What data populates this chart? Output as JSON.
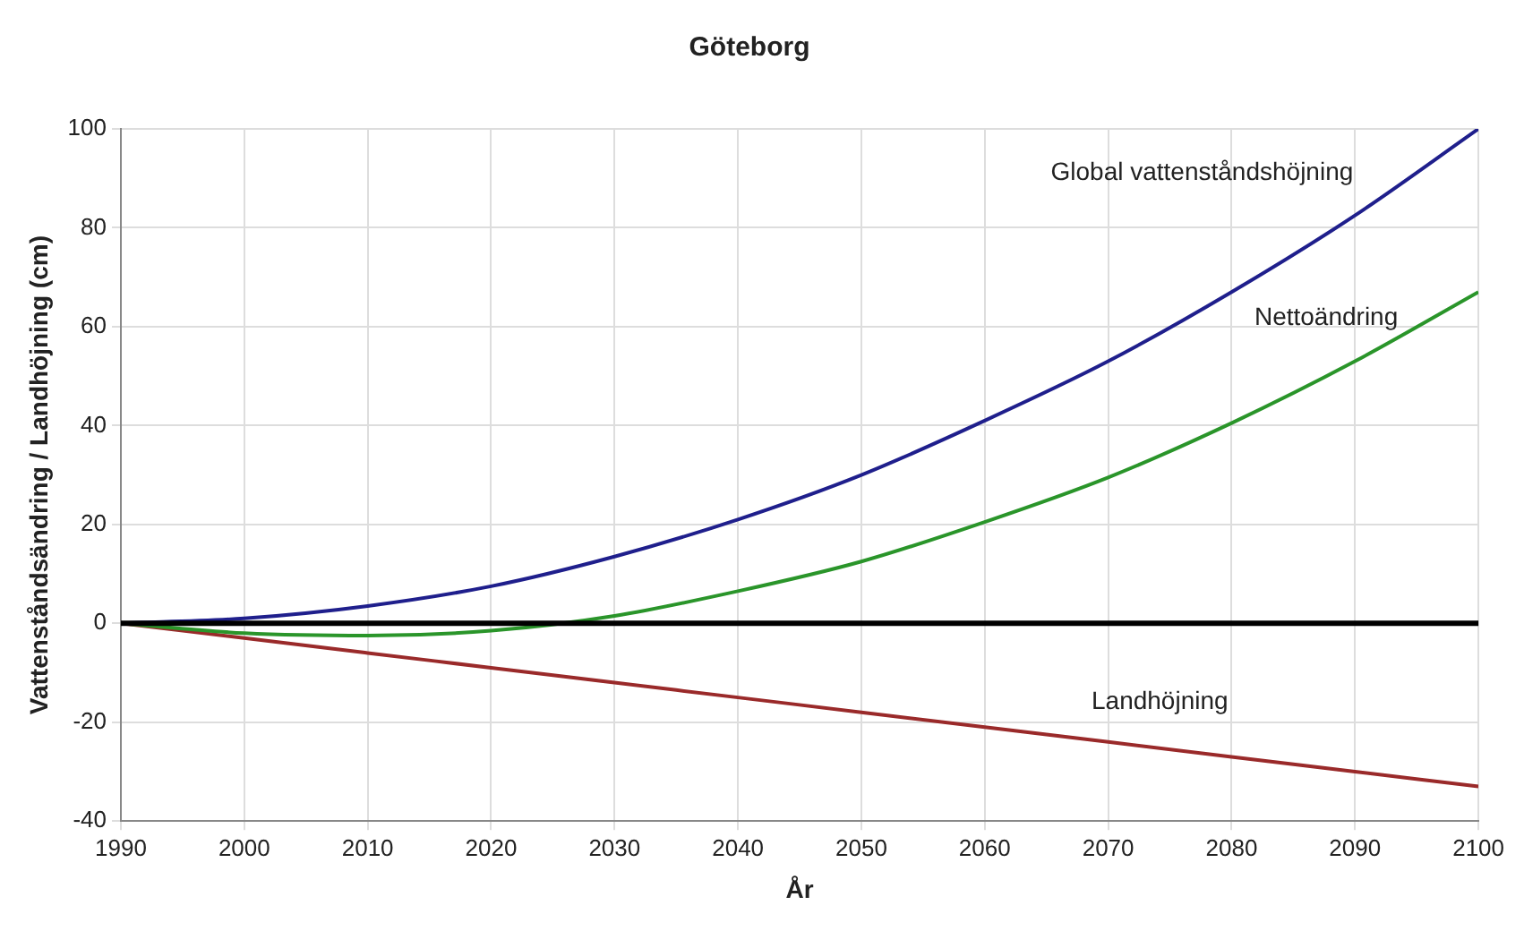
{
  "chart_data": {
    "type": "line",
    "title": "Göteborg",
    "xlabel": "År",
    "ylabel": "Vattenståndsändring / Landhöjning (cm)",
    "x": [
      1990,
      2000,
      2010,
      2020,
      2030,
      2040,
      2050,
      2060,
      2070,
      2080,
      2090,
      2100
    ],
    "series": [
      {
        "name": "Global vattenståndshöjning",
        "color": "#1f1f8c",
        "values": [
          0,
          1,
          3.5,
          7.5,
          13.5,
          21,
          30,
          41,
          53,
          67,
          82.5,
          100
        ]
      },
      {
        "name": "Nettoändring",
        "color": "#2a952a",
        "values": [
          0,
          -2,
          -2.5,
          -1.5,
          1.5,
          6.5,
          12.5,
          20.5,
          29.5,
          40.5,
          53,
          67
        ]
      },
      {
        "name": "Landhöjning",
        "color": "#9a2a2a",
        "values": [
          0,
          -3,
          -6,
          -9,
          -12,
          -15,
          -18,
          -21,
          -24,
          -27,
          -30,
          -33
        ]
      }
    ],
    "xlim": [
      1990,
      2100
    ],
    "xticks": [
      1990,
      2000,
      2010,
      2020,
      2030,
      2040,
      2050,
      2060,
      2070,
      2080,
      2090,
      2100
    ],
    "ylim": [
      -40,
      100
    ],
    "yticks": [
      -40,
      -20,
      0,
      20,
      40,
      60,
      80,
      100
    ],
    "ref_lines": [
      {
        "axis": "y",
        "value": 0,
        "color": "#000000"
      }
    ],
    "grid": true,
    "legend": false,
    "marker": "none",
    "line_style": "solid"
  }
}
